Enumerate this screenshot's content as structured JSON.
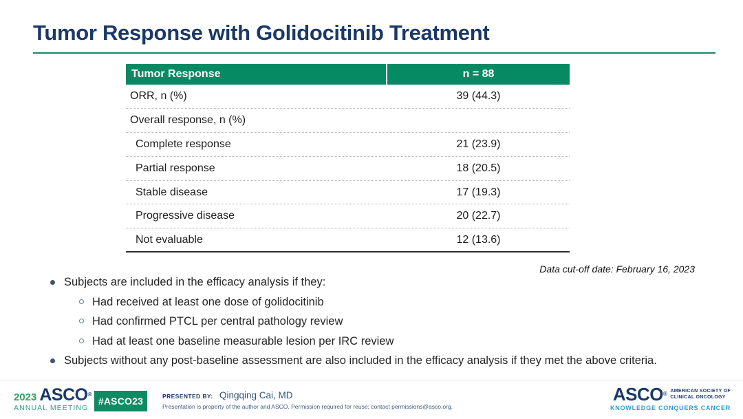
{
  "slide": {
    "title": "Tumor Response with Golidocitinib Treatment",
    "data_cutoff": "Data cut-off date: February 16, 2023"
  },
  "table": {
    "headers": [
      "Tumor Response",
      "n = 88"
    ],
    "rows": [
      {
        "label": "ORR, n (%)",
        "value": "39 (44.3)",
        "indent": 0
      },
      {
        "label": "Overall response, n (%)",
        "value": "",
        "indent": 0
      },
      {
        "label": "Complete response",
        "value": "21 (23.9)",
        "indent": 1
      },
      {
        "label": "Partial response",
        "value": "18 (20.5)",
        "indent": 1
      },
      {
        "label": "Stable disease",
        "value": "17 (19.3)",
        "indent": 1
      },
      {
        "label": "Progressive disease",
        "value": "20 (22.7)",
        "indent": 1
      },
      {
        "label": "Not evaluable",
        "value": "12 (13.6)",
        "indent": 1
      }
    ]
  },
  "bullets": [
    {
      "level": 1,
      "text": "Subjects are included in the efficacy analysis if they:"
    },
    {
      "level": 2,
      "text": "Had received at least one dose of golidocitinib"
    },
    {
      "level": 2,
      "text": "Had confirmed PTCL per central pathology review"
    },
    {
      "level": 2,
      "text": "Had at least one baseline measurable lesion per IRC review"
    },
    {
      "level": 1,
      "text": "Subjects without any post-baseline assessment are also included in the efficacy analysis if they met the above criteria."
    }
  ],
  "footer": {
    "meeting_year": "2023",
    "meeting_logo_text": "ASCO",
    "registered_mark": "®",
    "meeting_subtitle": "ANNUAL MEETING",
    "hashtag": "#ASCO23",
    "presented_by_label": "PRESENTED BY:",
    "presenter": "Qingqing Cai, MD",
    "disclaimer": "Presentation is property of the author and ASCO. Permission required for reuse; contact permissions@asco.org.",
    "asco_logo_text": "ASCO",
    "asco_society_line1": "AMERICAN SOCIETY OF",
    "asco_society_line2": "CLINICAL ONCOLOGY",
    "asco_tagline": "KNOWLEDGE CONQUERS CANCER"
  },
  "colors": {
    "title_navy": "#1B3968",
    "table_header_green": "#068A64",
    "accent_teal": "#12896B",
    "badge_green": "#0F8A63",
    "tagline_blue": "#2E9BD6"
  }
}
